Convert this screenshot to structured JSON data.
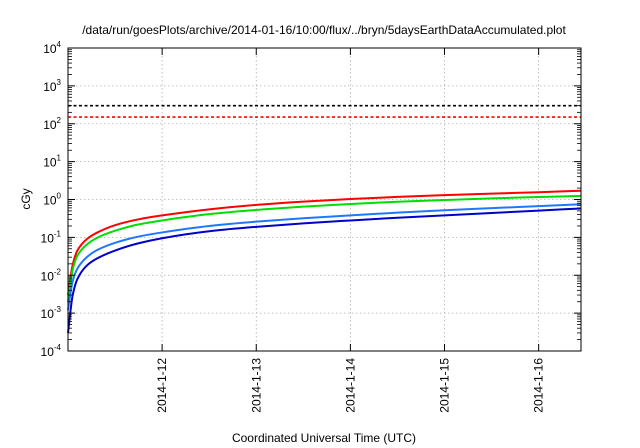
{
  "chart_data": {
    "type": "line",
    "title": "/data/run/goesPlots/archive/2014-01-16/10:00/flux/../bryn/5daysEarthDataAccumulated.plot",
    "xlabel": "Coordinated Universal Time (UTC)",
    "ylabel": "cGy",
    "y_scale": "log",
    "ylim_exp": [
      -4,
      4
    ],
    "ytick_exponents": [
      "-4",
      "-3",
      "-2",
      "-1",
      "0",
      "1",
      "2",
      "3",
      "4"
    ],
    "xlim": [
      0,
      5.45
    ],
    "x_ticks": [
      {
        "x": 1,
        "label": "2014-1-12"
      },
      {
        "x": 2,
        "label": "2014-1-13"
      },
      {
        "x": 3,
        "label": "2014-1-14"
      },
      {
        "x": 4,
        "label": "2014-1-15"
      },
      {
        "x": 5,
        "label": "2014-1-16"
      }
    ],
    "grid": true,
    "reference_lines": [
      {
        "y": 300,
        "color": "#000000",
        "style": "dashed"
      },
      {
        "y": 150,
        "color": "#ff0000",
        "style": "dashed"
      }
    ],
    "series": [
      {
        "color": "#ff0000",
        "x": [
          0.0,
          0.05,
          0.1,
          0.2,
          0.3,
          0.5,
          0.75,
          1.0,
          1.5,
          2.0,
          2.5,
          3.0,
          3.5,
          4.0,
          4.5,
          5.0,
          5.45
        ],
        "y": [
          0.003,
          0.019,
          0.045,
          0.09,
          0.13,
          0.21,
          0.3,
          0.38,
          0.55,
          0.72,
          0.88,
          1.03,
          1.17,
          1.3,
          1.43,
          1.56,
          1.7
        ]
      },
      {
        "color": "#00dd00",
        "x": [
          0.0,
          0.05,
          0.1,
          0.2,
          0.3,
          0.5,
          0.75,
          1.0,
          1.5,
          2.0,
          2.5,
          3.0,
          3.5,
          4.0,
          4.5,
          5.0,
          5.45
        ],
        "y": [
          0.002,
          0.014,
          0.033,
          0.065,
          0.095,
          0.15,
          0.22,
          0.28,
          0.41,
          0.53,
          0.65,
          0.76,
          0.87,
          0.97,
          1.07,
          1.16,
          1.25
        ]
      },
      {
        "color": "#1f77ff",
        "x": [
          0.0,
          0.05,
          0.1,
          0.2,
          0.3,
          0.5,
          0.75,
          1.0,
          1.5,
          2.0,
          2.5,
          3.0,
          3.5,
          4.0,
          4.5,
          5.0,
          5.45
        ],
        "y": [
          0.0012,
          0.007,
          0.015,
          0.03,
          0.045,
          0.072,
          0.105,
          0.135,
          0.2,
          0.26,
          0.32,
          0.38,
          0.45,
          0.52,
          0.59,
          0.67,
          0.75
        ]
      },
      {
        "color": "#0000cc",
        "x": [
          0.0,
          0.05,
          0.1,
          0.2,
          0.3,
          0.5,
          0.75,
          1.0,
          1.5,
          2.0,
          2.5,
          3.0,
          3.5,
          4.0,
          4.5,
          5.0,
          5.45
        ],
        "y": [
          0.0003,
          0.003,
          0.008,
          0.018,
          0.027,
          0.045,
          0.07,
          0.095,
          0.145,
          0.19,
          0.235,
          0.28,
          0.33,
          0.38,
          0.44,
          0.51,
          0.58
        ]
      }
    ]
  }
}
